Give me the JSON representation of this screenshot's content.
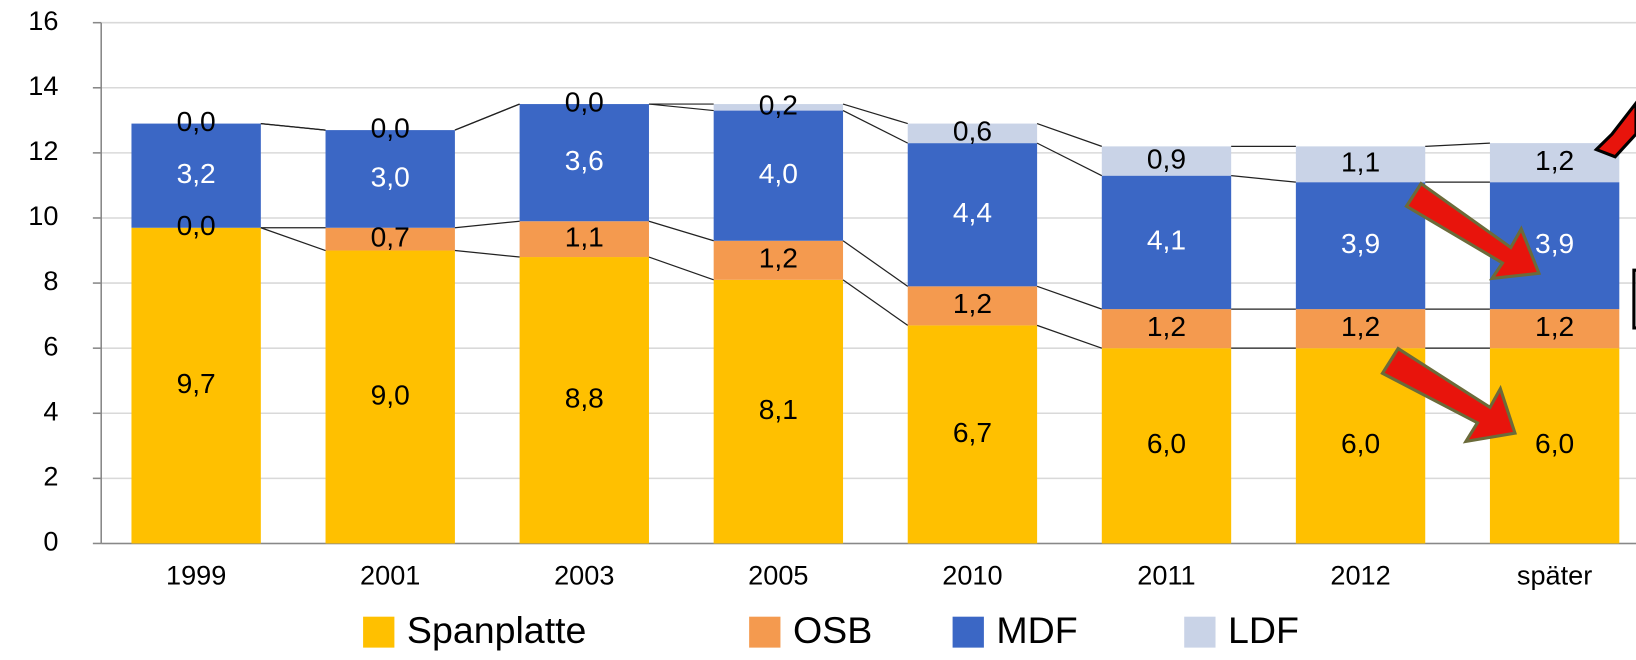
{
  "chart_data": {
    "type": "stacked_bar",
    "categories": [
      "1999",
      "2001",
      "2003",
      "2005",
      "2010",
      "2011",
      "2012",
      "später"
    ],
    "series": [
      {
        "name": "Spanplatte",
        "color": "#ffc000",
        "values": [
          9.7,
          9.0,
          8.8,
          8.1,
          6.7,
          6.0,
          6.0,
          6.0
        ],
        "value_labels": [
          "9,7",
          "9,0",
          "8,8",
          "8,1",
          "6,7",
          "6,0",
          "6,0",
          "6,0"
        ]
      },
      {
        "name": "OSB",
        "color": "#f49a4f",
        "values": [
          0.0,
          0.7,
          1.1,
          1.2,
          1.2,
          1.2,
          1.2,
          1.2
        ],
        "value_labels": [
          "0,0",
          "0,7",
          "1,1",
          "1,2",
          "1,2",
          "1,2",
          "1,2",
          "1,2"
        ]
      },
      {
        "name": "MDF",
        "color": "#3b67c5",
        "values": [
          3.2,
          3.0,
          3.6,
          4.0,
          4.4,
          4.1,
          3.9,
          3.9
        ],
        "value_labels": [
          "3,2",
          "3,0",
          "3,6",
          "4,0",
          "4,4",
          "4,1",
          "3,9",
          "3,9"
        ]
      },
      {
        "name": "LDF",
        "color": "#c9d3e7",
        "values": [
          0.0,
          0.0,
          0.0,
          0.2,
          0.6,
          0.9,
          1.1,
          1.2
        ],
        "value_labels": [
          "0,0",
          "0,0",
          "0,0",
          "0,2",
          "0,6",
          "0,9",
          "1,1",
          "1,2"
        ]
      }
    ],
    "ylim": [
      0,
      16
    ],
    "yticks": [
      0,
      2,
      4,
      6,
      8,
      10,
      12,
      14,
      16
    ],
    "grid": true,
    "legend": "bottom"
  }
}
